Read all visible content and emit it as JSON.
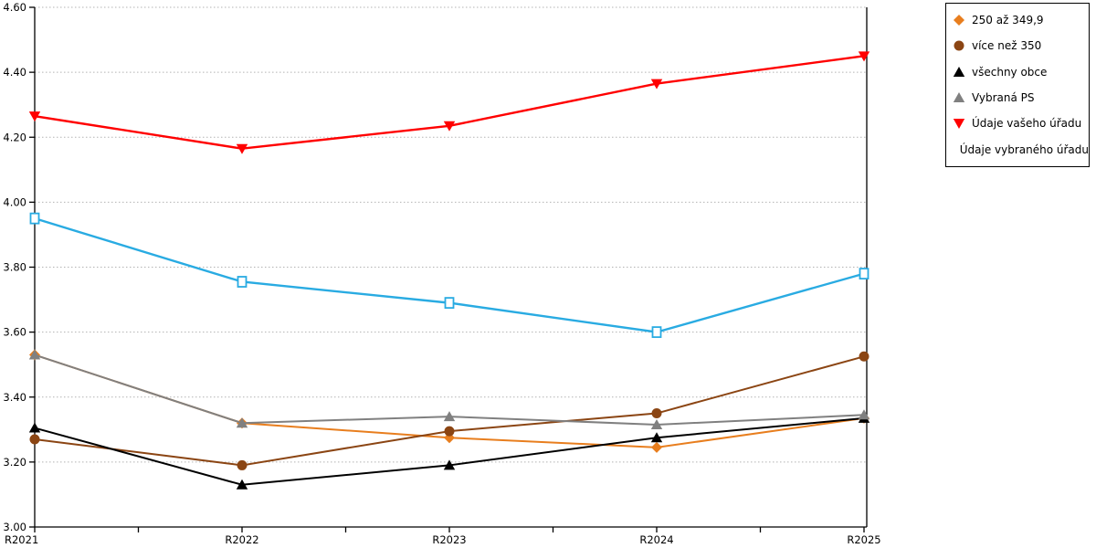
{
  "chart_data": {
    "type": "line",
    "title": "",
    "xlabel": "",
    "ylabel": "",
    "categories": [
      "R2021",
      "R2022",
      "R2023",
      "R2024",
      "R2025"
    ],
    "series": [
      {
        "name": "250 až 349,9",
        "marker": "diamond",
        "color": "#E87E1E",
        "values": [
          3.53,
          3.32,
          3.275,
          3.245,
          3.335
        ]
      },
      {
        "name": "více než 350",
        "marker": "circle",
        "color": "#8B4513",
        "values": [
          3.27,
          3.19,
          3.295,
          3.35,
          3.525
        ]
      },
      {
        "name": "všechny obce",
        "marker": "triangle-up",
        "color": "#000000",
        "values": [
          3.305,
          3.13,
          3.19,
          3.275,
          3.335
        ]
      },
      {
        "name": "Vybraná PS",
        "marker": "triangle-up",
        "color": "#808080",
        "values": [
          3.53,
          3.32,
          3.34,
          3.315,
          3.345
        ]
      },
      {
        "name": "Údaje vašeho úřadu",
        "marker": "triangle-down",
        "color": "#FF0000",
        "values": [
          4.265,
          4.165,
          4.235,
          4.365,
          4.45
        ]
      },
      {
        "name": "Údaje vybraného úřadu",
        "marker": "square-open",
        "color": "#29ABE2",
        "values": [
          3.95,
          3.755,
          3.69,
          3.6,
          3.78
        ]
      }
    ],
    "ylim": [
      3.0,
      4.6
    ],
    "ytick_step": 0.2,
    "ytick_labels": [
      "3.00",
      "3.20",
      "3.40",
      "3.60",
      "3.80",
      "4.00",
      "4.20",
      "4.40",
      "4.60"
    ],
    "grid": "horizontal-dotted",
    "grid_color": "#b3b3b3",
    "axis_color": "#000000",
    "legend_position": "outside-right"
  }
}
